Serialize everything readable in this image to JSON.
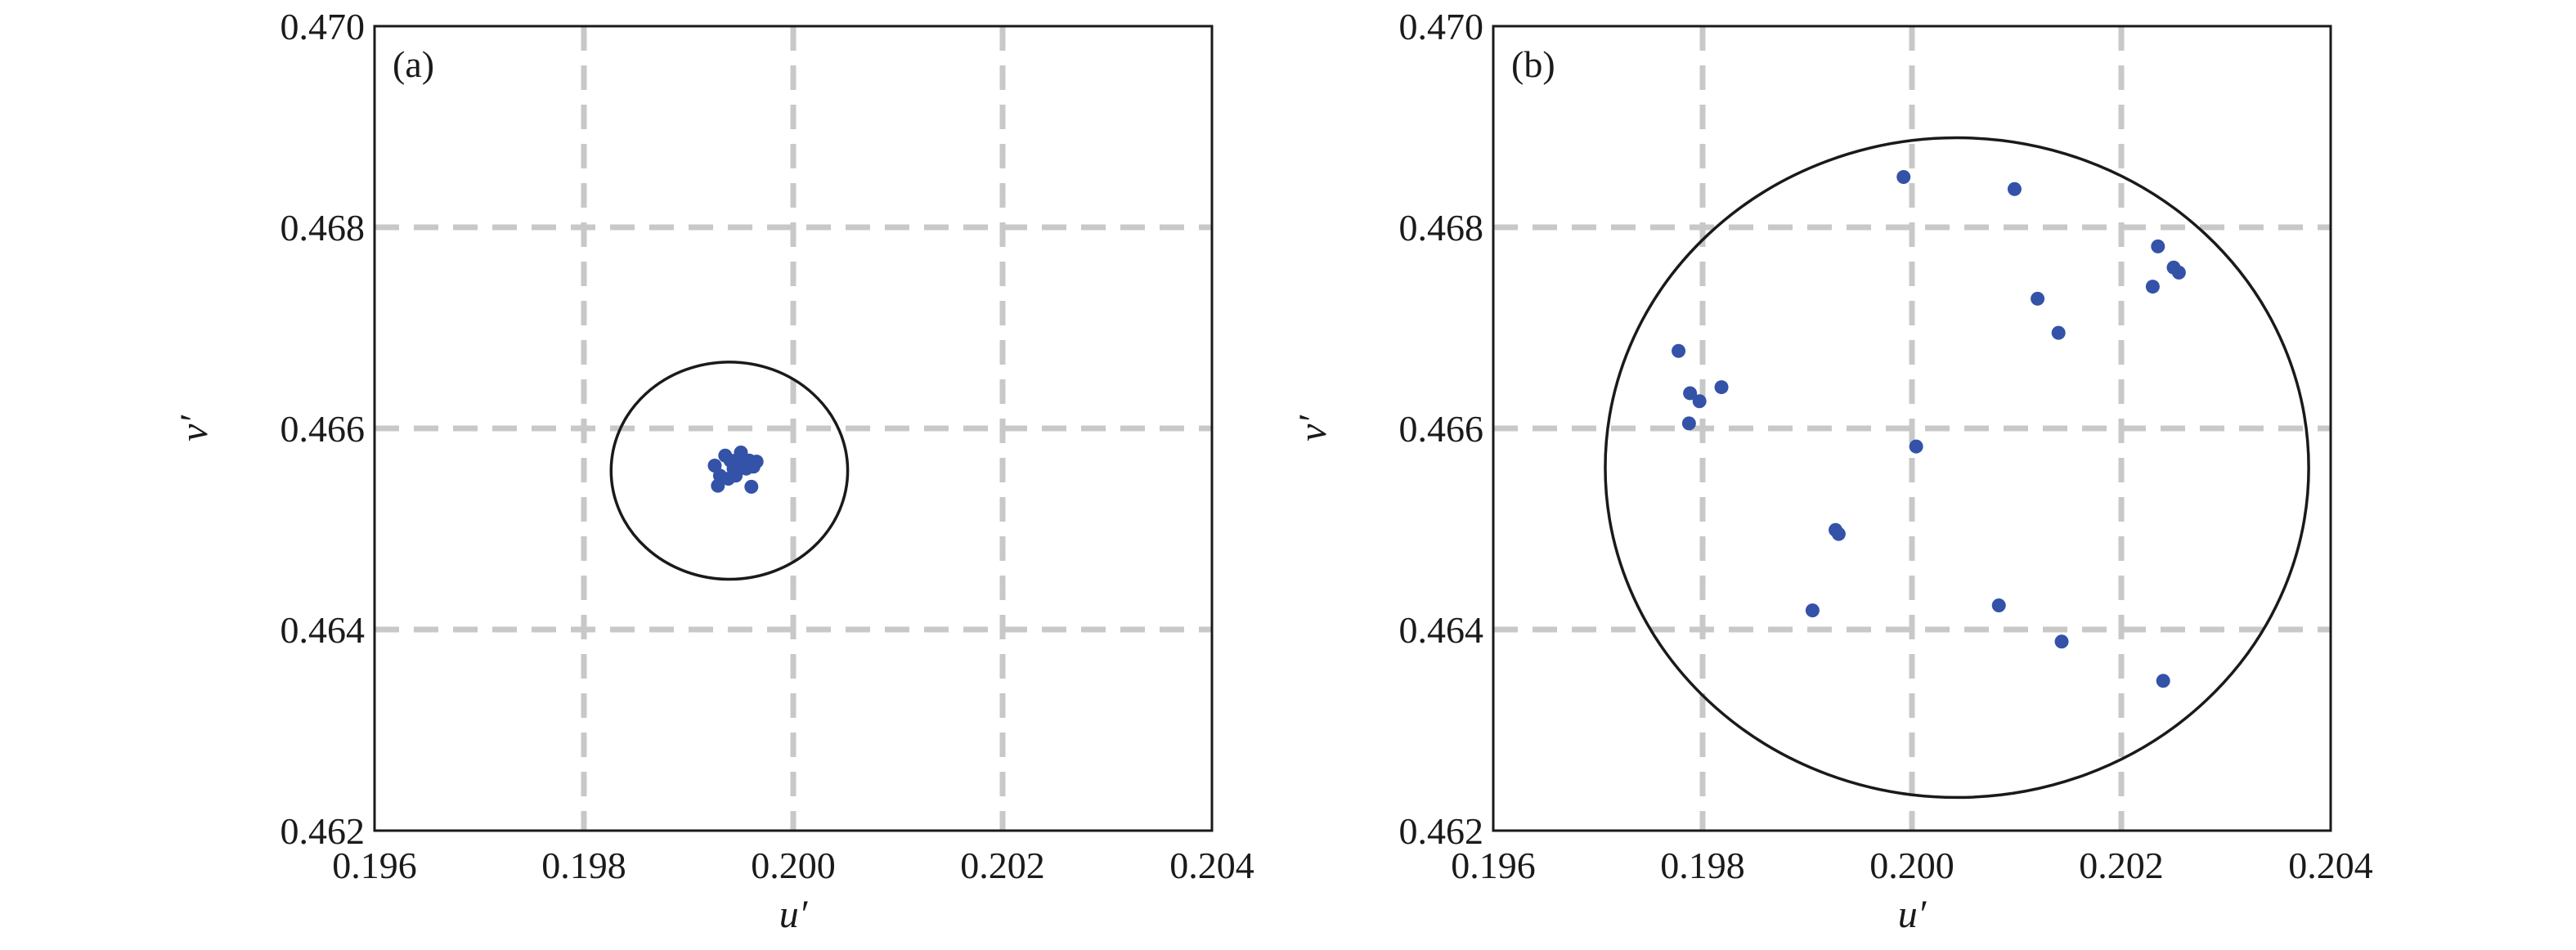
{
  "chart_data": [
    {
      "type": "scatter",
      "panel_label": "(a)",
      "xlabel": "u′",
      "ylabel": "v′",
      "xlim": [
        0.196,
        0.204
      ],
      "ylim": [
        0.462,
        0.47
      ],
      "xticks": [
        "0.196",
        "0.198",
        "0.200",
        "0.202",
        "0.204"
      ],
      "yticks": [
        "0.462",
        "0.464",
        "0.466",
        "0.468",
        "0.470"
      ],
      "grid": true,
      "point_color": "#3352a8",
      "ellipse": {
        "center": [
          0.19939,
          0.46558
        ],
        "radius_x": 0.00113,
        "radius_y": 0.00108
      },
      "points": [
        [
          0.19925,
          0.46563
        ],
        [
          0.1993,
          0.46553
        ],
        [
          0.19928,
          0.46543
        ],
        [
          0.19935,
          0.46573
        ],
        [
          0.1994,
          0.46568
        ],
        [
          0.19943,
          0.4656
        ],
        [
          0.19945,
          0.46553
        ],
        [
          0.19948,
          0.4657
        ],
        [
          0.1995,
          0.46576
        ],
        [
          0.19953,
          0.46565
        ],
        [
          0.19955,
          0.4656
        ],
        [
          0.19958,
          0.46568
        ],
        [
          0.19962,
          0.46562
        ],
        [
          0.19965,
          0.46567
        ],
        [
          0.1996,
          0.46542
        ],
        [
          0.19938,
          0.4655
        ]
      ]
    },
    {
      "type": "scatter",
      "panel_label": "(b)",
      "xlabel": "u′",
      "ylabel": "v′",
      "xlim": [
        0.196,
        0.204
      ],
      "ylim": [
        0.462,
        0.47
      ],
      "xticks": [
        "0.196",
        "0.198",
        "0.200",
        "0.202",
        "0.204"
      ],
      "yticks": [
        "0.462",
        "0.464",
        "0.466",
        "0.468",
        "0.470"
      ],
      "grid": true,
      "point_color": "#3352a8",
      "ellipse": {
        "center": [
          0.20043,
          0.46561
        ],
        "radius_x": 0.00336,
        "radius_y": 0.00328
      },
      "points": [
        [
          0.19992,
          0.4685
        ],
        [
          0.20098,
          0.46838
        ],
        [
          0.20235,
          0.46781
        ],
        [
          0.2025,
          0.4676
        ],
        [
          0.20255,
          0.46755
        ],
        [
          0.2023,
          0.46741
        ],
        [
          0.2012,
          0.46729
        ],
        [
          0.2014,
          0.46695
        ],
        [
          0.19777,
          0.46677
        ],
        [
          0.19818,
          0.46641
        ],
        [
          0.19788,
          0.46635
        ],
        [
          0.19797,
          0.46627
        ],
        [
          0.19787,
          0.46605
        ],
        [
          0.20004,
          0.46582
        ],
        [
          0.19927,
          0.46499
        ],
        [
          0.1993,
          0.46495
        ],
        [
          0.19905,
          0.46419
        ],
        [
          0.20083,
          0.46424
        ],
        [
          0.20143,
          0.46388
        ],
        [
          0.2024,
          0.46349
        ]
      ]
    }
  ]
}
